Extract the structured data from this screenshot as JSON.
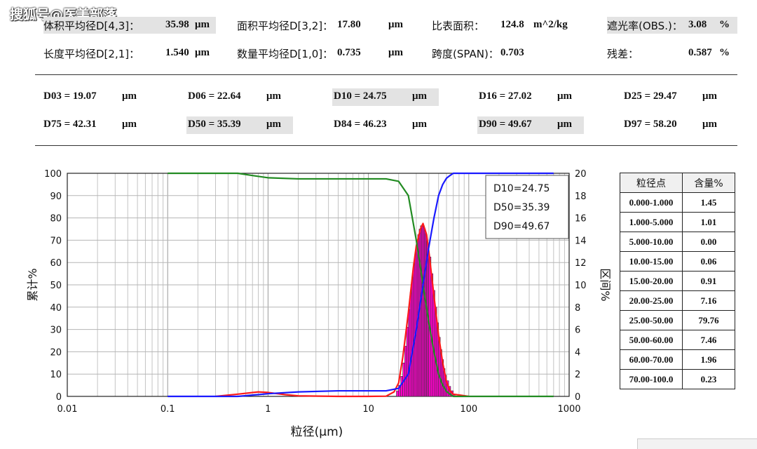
{
  "watermark": "搜狐号@医美部落",
  "summary": {
    "row1": [
      {
        "label": "体积平均径D[4,3]：",
        "value": "35.98",
        "unit": "μm"
      },
      {
        "label": "面积平均径D[3,2]：",
        "value": "17.80",
        "unit": "μm"
      },
      {
        "label": "比表面积：",
        "value": "124.8",
        "unit": "m^2/kg"
      },
      {
        "label": "遮光率(OBS.)：",
        "value": "3.08",
        "unit": "%"
      }
    ],
    "row2": [
      {
        "label": "长度平均径D[2,1]：",
        "value": "1.540",
        "unit": "μm"
      },
      {
        "label": "数量平均径D[1,0]：",
        "value": "0.735",
        "unit": "μm"
      },
      {
        "label": "跨度(SPAN)：",
        "value": "0.703",
        "unit": ""
      },
      {
        "label": "残差：",
        "value": "0.587",
        "unit": "%"
      }
    ]
  },
  "percentiles": {
    "row1": [
      {
        "text": "D03 = 19.07",
        "unit": "μm"
      },
      {
        "text": "D06 = 22.64",
        "unit": "μm"
      },
      {
        "text": "D10 = 24.75",
        "unit": "μm"
      },
      {
        "text": "D16 = 27.02",
        "unit": "μm"
      },
      {
        "text": "D25 = 29.47",
        "unit": "μm"
      }
    ],
    "row2": [
      {
        "text": "D75 = 42.31",
        "unit": "μm"
      },
      {
        "text": "D50 = 35.39",
        "unit": "μm"
      },
      {
        "text": "D84 = 46.23",
        "unit": "μm"
      },
      {
        "text": "D90 = 49.67",
        "unit": "μm"
      },
      {
        "text": "D97 = 58.20",
        "unit": "μm"
      }
    ]
  },
  "table": {
    "headers": [
      "粒径点",
      "含量%"
    ],
    "rows": [
      [
        "0.000-1.000",
        "1.45"
      ],
      [
        "1.000-5.000",
        "1.01"
      ],
      [
        "5.000-10.00",
        "0.00"
      ],
      [
        "10.00-15.00",
        "0.06"
      ],
      [
        "15.00-20.00",
        "0.91"
      ],
      [
        "20.00-25.00",
        "7.16"
      ],
      [
        "25.00-50.00",
        "79.76"
      ],
      [
        "50.00-60.00",
        "7.46"
      ],
      [
        "60.00-70.00",
        "1.96"
      ],
      [
        "70.00-100.0",
        "0.23"
      ]
    ]
  },
  "chart_data": {
    "type": "line",
    "xlabel": "粒径(μm)",
    "ylabel_left": "累计%",
    "ylabel_right": "区间%",
    "x_scale": "log",
    "xlim": [
      0.01,
      1000
    ],
    "x_ticks": [
      "0.01",
      "0.1",
      "1",
      "10",
      "100",
      "1000"
    ],
    "ylim_left": [
      0,
      100
    ],
    "y_ticks_left": [
      "0",
      "10",
      "20",
      "30",
      "40",
      "50",
      "60",
      "70",
      "80",
      "90",
      "100"
    ],
    "ylim_right": [
      0,
      20
    ],
    "y_ticks_right": [
      "0",
      "2",
      "4",
      "6",
      "8",
      "10",
      "12",
      "14",
      "16",
      "18",
      "20"
    ],
    "grid": true,
    "legend_box": [
      "D10=24.75",
      "D50=35.39",
      "D90=49.67"
    ],
    "legend_placement": "top-right",
    "colors": {
      "cumulative_undersize": "#1a1aff",
      "cumulative_oversize": "#228b22",
      "interval_curve": "#ff1a1a",
      "interval_bars": "#ff00cc"
    },
    "series": [
      {
        "axis": "left",
        "x": [
          0.1,
          0.5,
          1,
          2,
          5,
          10,
          15,
          20,
          25,
          30,
          35,
          40,
          45,
          50,
          55,
          60,
          65,
          70,
          80,
          100,
          700
        ],
        "values": [
          0,
          0,
          1.2,
          2,
          2.5,
          2.5,
          2.5,
          3.6,
          10,
          30,
          50,
          67,
          80,
          90,
          95,
          97.8,
          99,
          100,
          100,
          100,
          100
        ]
      },
      {
        "axis": "left",
        "x": [
          0.1,
          0.5,
          0.7,
          1,
          2,
          5,
          10,
          15,
          20,
          25,
          30,
          35,
          40,
          45,
          50,
          55,
          60,
          65,
          70,
          80,
          700
        ],
        "values": [
          100,
          100,
          99,
          98,
          97.5,
          97.5,
          97.5,
          97.5,
          96.4,
          90,
          70,
          50,
          33,
          20,
          10,
          5,
          2.2,
          1,
          0,
          0,
          0
        ]
      },
      {
        "axis": "right",
        "x": [
          0.3,
          0.5,
          0.8,
          1,
          1.5,
          2,
          5,
          10,
          15,
          18,
          20,
          22,
          25,
          28,
          30,
          33,
          35,
          38,
          40,
          45,
          50,
          55,
          60,
          65,
          70,
          100
        ],
        "values": [
          0,
          0.2,
          0.4,
          0.35,
          0.15,
          0.05,
          0,
          0,
          0.02,
          0.4,
          1.2,
          3.5,
          7.5,
          11.5,
          13.5,
          15,
          15.5,
          14.5,
          13,
          9,
          5.5,
          3,
          1.3,
          0.5,
          0.2,
          0
        ]
      },
      {
        "axis": "right",
        "x": [
          19,
          20,
          21,
          22,
          23,
          24,
          25,
          26,
          27,
          28,
          29,
          30,
          31,
          32,
          33,
          34,
          35,
          36,
          37,
          38,
          39,
          40,
          42,
          44,
          46,
          48,
          50,
          52,
          54,
          56,
          58,
          60,
          63,
          66,
          70
        ],
        "values": [
          0.5,
          1.0,
          1.8,
          3.0,
          4.5,
          6.2,
          7.8,
          9.3,
          10.7,
          11.9,
          12.9,
          13.8,
          14.5,
          15.0,
          15.3,
          15.4,
          15.3,
          15.0,
          14.6,
          14.0,
          13.3,
          12.5,
          11.0,
          9.5,
          8.0,
          6.6,
          5.3,
          4.2,
          3.3,
          2.5,
          1.9,
          1.4,
          0.9,
          0.5,
          0.2
        ]
      }
    ]
  }
}
